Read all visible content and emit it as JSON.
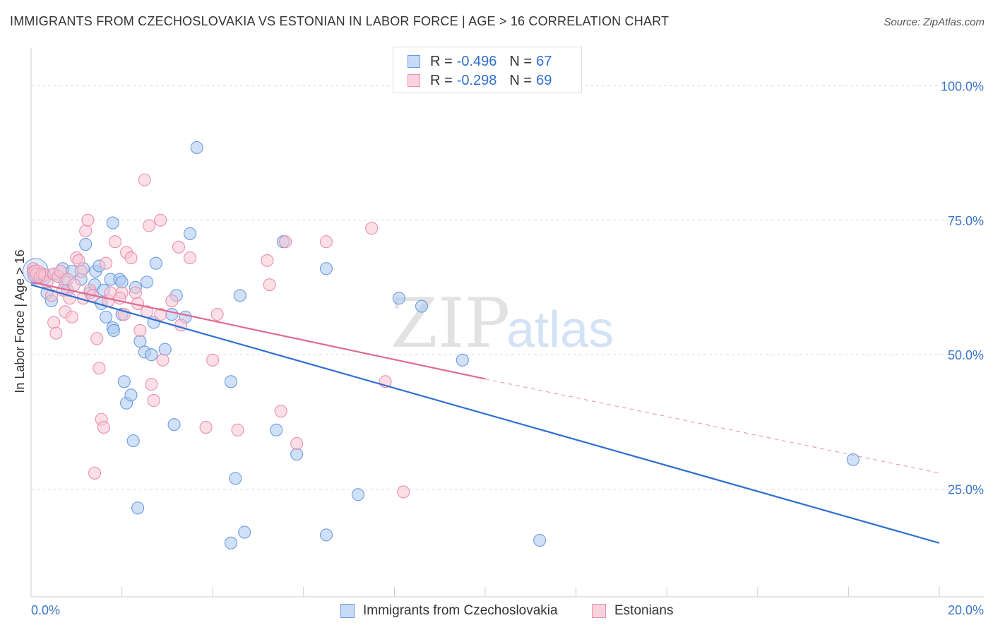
{
  "title": "IMMIGRANTS FROM CZECHOSLOVAKIA VS ESTONIAN IN LABOR FORCE | AGE > 16 CORRELATION CHART",
  "source": "Source: ZipAtlas.com",
  "watermark": {
    "zip": "ZIP",
    "atlas": "atlas"
  },
  "legend": {
    "rows": [
      {
        "r_label": "R =",
        "r_value": "-0.496",
        "n_label": "N =",
        "n_value": "67",
        "color": "#a9c8f0",
        "border": "#6c9be0"
      },
      {
        "r_label": "R =",
        "r_value": "-0.298",
        "n_label": "N =",
        "n_value": "69",
        "color": "#f8c4d4",
        "border": "#e890ac"
      }
    ]
  },
  "bottom_legend": {
    "series1": "Immigrants from Czechoslovakia",
    "series2": "Estonians"
  },
  "chart_data": {
    "type": "scatter",
    "xlabel": "",
    "ylabel": "In Labor Force | Age > 16",
    "xlim": [
      0,
      20
    ],
    "ylim": [
      5,
      107
    ],
    "x_tick_labels": [
      "0.0%",
      "20.0%"
    ],
    "y_ticks": [
      25,
      50,
      75,
      100
    ],
    "y_tick_labels": [
      "25.0%",
      "50.0%",
      "75.0%",
      "100.0%"
    ],
    "grid": true,
    "legend_position": "top-center",
    "series": [
      {
        "name": "Immigrants from Czechoslovakia",
        "color": "#6c9be0",
        "fill": "#a9c8f0",
        "trend": {
          "x": [
            0,
            20
          ],
          "y": [
            63.0,
            15.0
          ],
          "dashed_to": null
        },
        "points": [
          [
            0.05,
            65.5
          ],
          [
            0.08,
            64.8
          ],
          [
            0.1,
            65.2
          ],
          [
            0.15,
            64.5
          ],
          [
            0.2,
            65
          ],
          [
            0.25,
            64.5
          ],
          [
            0.3,
            64.2
          ],
          [
            0.35,
            61.5
          ],
          [
            0.45,
            60
          ],
          [
            0.5,
            65
          ],
          [
            0.6,
            64.5
          ],
          [
            0.7,
            66
          ],
          [
            0.75,
            63.5
          ],
          [
            0.8,
            62
          ],
          [
            0.9,
            65.5
          ],
          [
            1.1,
            64
          ],
          [
            1.15,
            66
          ],
          [
            1.2,
            70.5
          ],
          [
            1.3,
            61.5
          ],
          [
            1.4,
            63
          ],
          [
            1.42,
            65.5
          ],
          [
            1.5,
            66.5
          ],
          [
            1.55,
            59.5
          ],
          [
            1.6,
            62
          ],
          [
            1.65,
            57
          ],
          [
            1.75,
            64
          ],
          [
            1.8,
            55
          ],
          [
            1.82,
            54.5
          ],
          [
            1.8,
            74.5
          ],
          [
            1.95,
            64
          ],
          [
            2.0,
            63.5
          ],
          [
            2.0,
            57.5
          ],
          [
            2.05,
            45
          ],
          [
            2.1,
            41
          ],
          [
            2.2,
            42.5
          ],
          [
            2.25,
            34
          ],
          [
            2.3,
            62.5
          ],
          [
            2.35,
            21.5
          ],
          [
            2.4,
            52.5
          ],
          [
            2.5,
            50.5
          ],
          [
            2.55,
            63.5
          ],
          [
            2.65,
            50
          ],
          [
            2.7,
            56
          ],
          [
            2.75,
            67
          ],
          [
            3.2,
            61
          ],
          [
            3.4,
            57
          ],
          [
            3.5,
            72.5
          ],
          [
            3.65,
            88.5
          ],
          [
            3.15,
            37
          ],
          [
            4.4,
            45
          ],
          [
            4.5,
            27
          ],
          [
            4.4,
            15
          ],
          [
            4.6,
            61
          ],
          [
            4.7,
            17
          ],
          [
            5.4,
            36
          ],
          [
            5.55,
            71
          ],
          [
            5.85,
            31.5
          ],
          [
            6.5,
            66
          ],
          [
            6.5,
            16.5
          ],
          [
            7.2,
            24
          ],
          [
            8.1,
            60.5
          ],
          [
            8.6,
            59
          ],
          [
            9.5,
            49
          ],
          [
            11.2,
            15.5
          ],
          [
            18.1,
            30.5
          ],
          [
            3.1,
            57.5
          ],
          [
            2.95,
            51
          ]
        ]
      },
      {
        "name": "Estonians",
        "color": "#e890ac",
        "fill": "#f8c4d4",
        "trend": {
          "x": [
            0,
            10
          ],
          "y": [
            63.5,
            45.5
          ],
          "dashed_to": [
            20,
            28.0
          ]
        },
        "points": [
          [
            0.05,
            66
          ],
          [
            0.1,
            65.5
          ],
          [
            0.12,
            65
          ],
          [
            0.2,
            64.5
          ],
          [
            0.25,
            65
          ],
          [
            0.3,
            64.8
          ],
          [
            0.35,
            63.5
          ],
          [
            0.45,
            61
          ],
          [
            0.5,
            65
          ],
          [
            0.5,
            56
          ],
          [
            0.55,
            54
          ],
          [
            0.6,
            64.5
          ],
          [
            0.65,
            65.5
          ],
          [
            0.7,
            62
          ],
          [
            0.75,
            58
          ],
          [
            0.8,
            64
          ],
          [
            0.85,
            60.5
          ],
          [
            0.9,
            57
          ],
          [
            0.95,
            63
          ],
          [
            1.0,
            68
          ],
          [
            1.05,
            67.5
          ],
          [
            1.1,
            65.5
          ],
          [
            1.15,
            60.5
          ],
          [
            1.2,
            73
          ],
          [
            1.25,
            75
          ],
          [
            1.3,
            62
          ],
          [
            1.35,
            61
          ],
          [
            1.4,
            28
          ],
          [
            1.45,
            53
          ],
          [
            1.5,
            47.5
          ],
          [
            1.55,
            38
          ],
          [
            1.6,
            36.5
          ],
          [
            1.65,
            67
          ],
          [
            1.7,
            60
          ],
          [
            1.75,
            61.5
          ],
          [
            1.85,
            71
          ],
          [
            2.0,
            61.5
          ],
          [
            2.05,
            57.5
          ],
          [
            2.1,
            69
          ],
          [
            2.2,
            68
          ],
          [
            2.3,
            61.5
          ],
          [
            2.35,
            59.5
          ],
          [
            2.4,
            54.5
          ],
          [
            2.5,
            82.5
          ],
          [
            2.55,
            58
          ],
          [
            2.6,
            74
          ],
          [
            2.65,
            44.5
          ],
          [
            2.7,
            41.5
          ],
          [
            2.85,
            75
          ],
          [
            2.9,
            49
          ],
          [
            3.1,
            60
          ],
          [
            3.25,
            70
          ],
          [
            3.3,
            55.5
          ],
          [
            3.5,
            68
          ],
          [
            3.85,
            36.5
          ],
          [
            4.0,
            49
          ],
          [
            4.1,
            57.5
          ],
          [
            4.55,
            36
          ],
          [
            5.2,
            67.5
          ],
          [
            5.25,
            63
          ],
          [
            5.5,
            39.5
          ],
          [
            5.6,
            71
          ],
          [
            5.85,
            33.5
          ],
          [
            6.5,
            71
          ],
          [
            7.5,
            73.5
          ],
          [
            7.8,
            45
          ],
          [
            8.2,
            24.5
          ],
          [
            2.85,
            57.5
          ],
          [
            1.95,
            60.5
          ]
        ]
      }
    ]
  }
}
